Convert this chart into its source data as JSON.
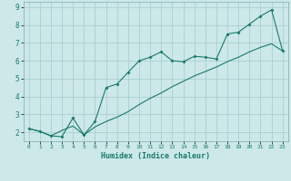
{
  "xlabel": "Humidex (Indice chaleur)",
  "background_color": "#cce8e8",
  "grid_color": "#aacfcf",
  "line_color": "#1a7a6a",
  "xlim": [
    -0.5,
    23.5
  ],
  "ylim": [
    1.5,
    9.3
  ],
  "xticks": [
    0,
    1,
    2,
    3,
    4,
    5,
    6,
    7,
    8,
    9,
    10,
    11,
    12,
    13,
    14,
    15,
    16,
    17,
    18,
    19,
    20,
    21,
    22,
    23
  ],
  "yticks": [
    2,
    3,
    4,
    5,
    6,
    7,
    8,
    9
  ],
  "line1_x": [
    0,
    1,
    2,
    3,
    4,
    5,
    6,
    7,
    8,
    9,
    10,
    11,
    12,
    13,
    14,
    15,
    16,
    17,
    18,
    19,
    20,
    21,
    22,
    23
  ],
  "line1_y": [
    2.2,
    2.05,
    1.8,
    1.75,
    2.8,
    1.85,
    2.6,
    4.5,
    4.7,
    5.35,
    6.0,
    6.2,
    6.5,
    6.0,
    5.95,
    6.25,
    6.2,
    6.1,
    7.5,
    7.6,
    8.05,
    8.5,
    8.85,
    6.55
  ],
  "line2_x": [
    0,
    1,
    2,
    3,
    4,
    5,
    6,
    7,
    8,
    9,
    10,
    11,
    12,
    13,
    14,
    15,
    16,
    17,
    18,
    19,
    20,
    21,
    22,
    23
  ],
  "line2_y": [
    2.2,
    2.05,
    1.8,
    2.1,
    2.35,
    1.85,
    2.3,
    2.6,
    2.85,
    3.15,
    3.55,
    3.9,
    4.2,
    4.55,
    4.85,
    5.15,
    5.4,
    5.65,
    5.95,
    6.2,
    6.5,
    6.75,
    6.95,
    6.55
  ]
}
